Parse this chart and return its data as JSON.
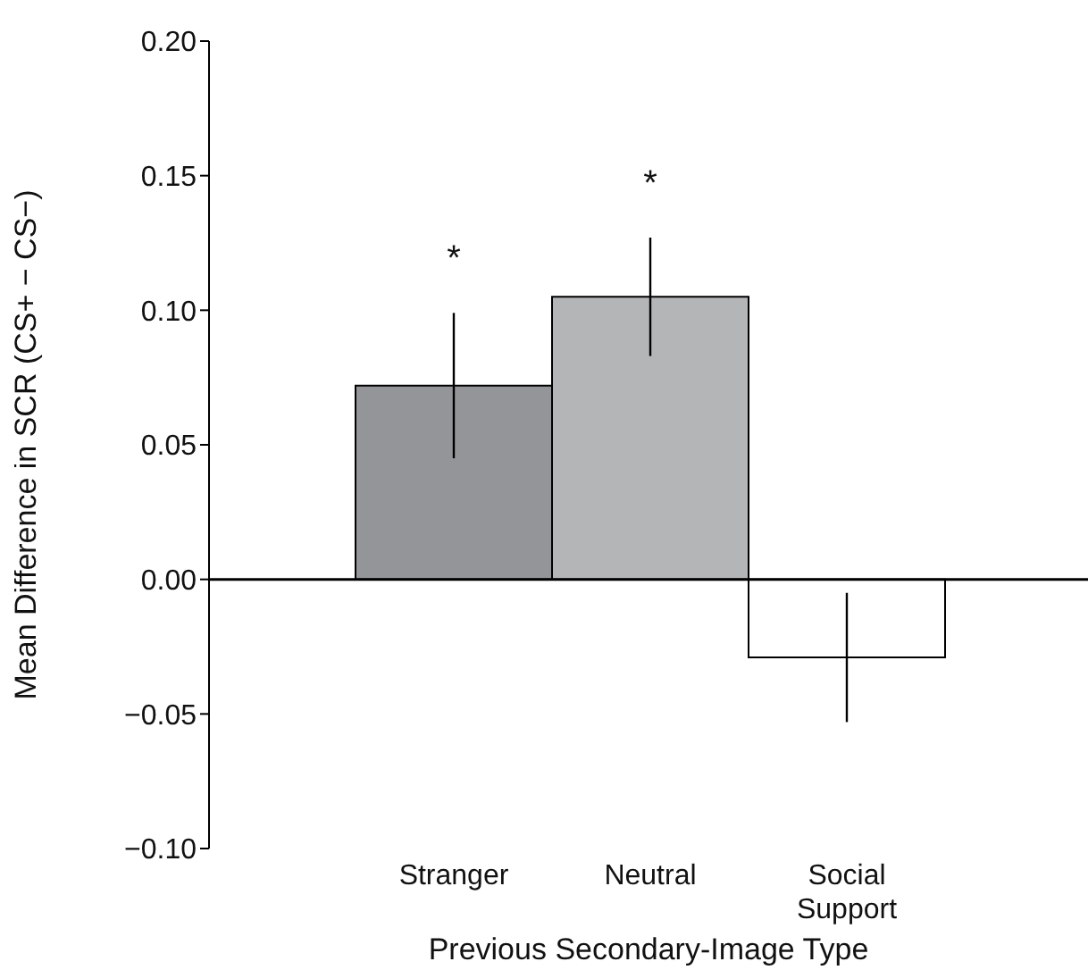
{
  "chart_data": {
    "type": "bar",
    "xlabel": "Previous Secondary-Image Type",
    "ylabel": "Mean Difference in SCR (CS+ − CS−)",
    "categories": [
      "Stranger",
      "Neutral",
      "Social Support"
    ],
    "values": [
      0.072,
      0.105,
      -0.029
    ],
    "errors": [
      0.027,
      0.022,
      0.024
    ],
    "colors": [
      "#939598",
      "#b4b5b7",
      "#ffffff"
    ],
    "ylim": [
      -0.1,
      0.2
    ],
    "yticks": [
      {
        "value": -0.1,
        "label": "−0.10"
      },
      {
        "value": -0.05,
        "label": "−0.05"
      },
      {
        "value": 0,
        "label": "0.00"
      },
      {
        "value": 0.05,
        "label": "0.05"
      },
      {
        "value": 0.1,
        "label": "0.10"
      },
      {
        "value": 0.15,
        "label": "0.15"
      },
      {
        "value": 0.2,
        "label": "0.20"
      }
    ],
    "annotations": [
      "*",
      "*"
    ],
    "ref_lines": [
      {
        "axis": "y",
        "value": 0
      }
    ],
    "grid": false,
    "legend": false
  }
}
